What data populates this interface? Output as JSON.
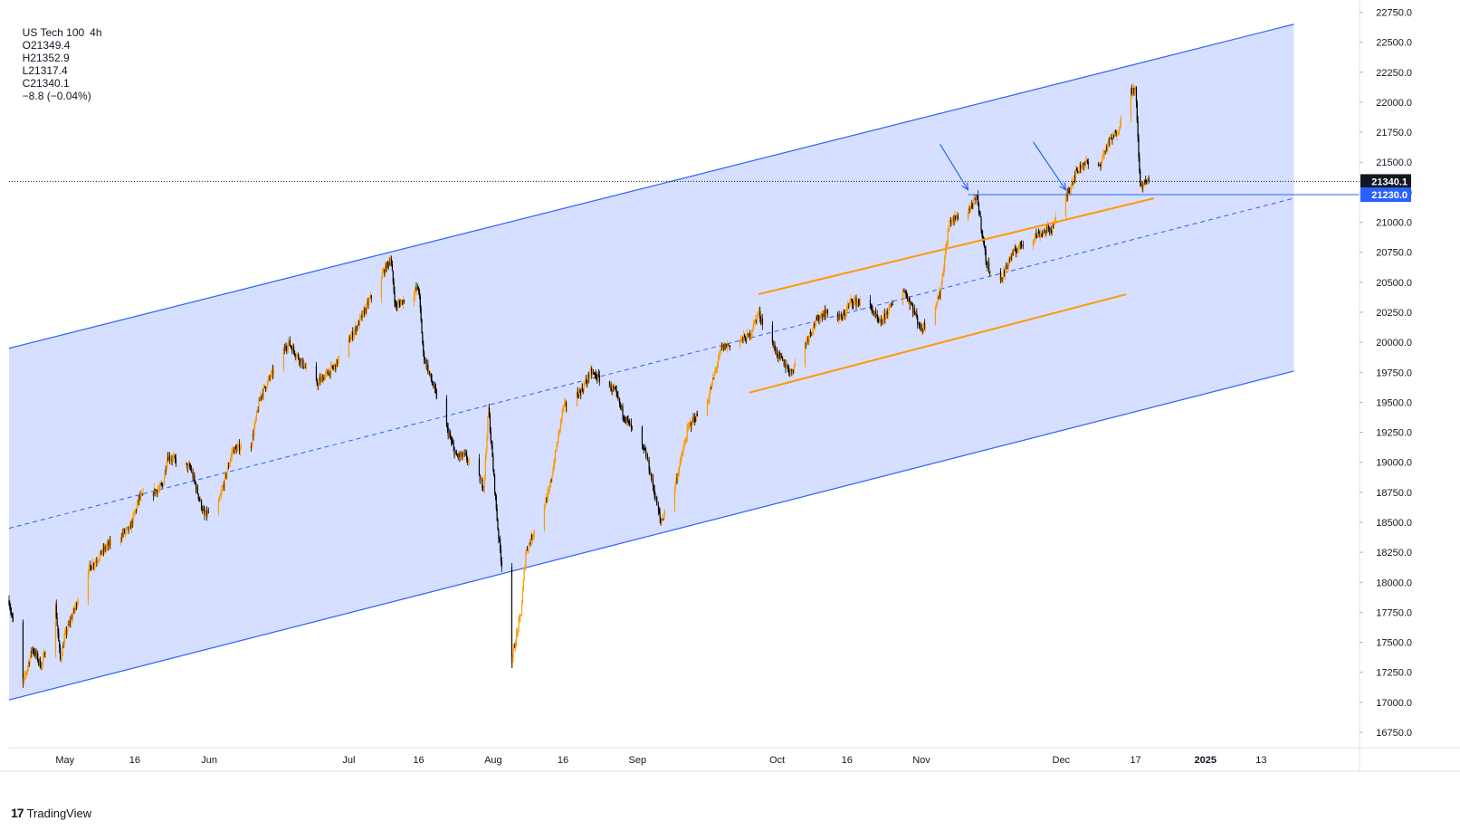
{
  "header": {
    "symbol": "US Tech 100",
    "interval": "4h",
    "open": "O21349.4",
    "high": "H21352.9",
    "low": "L21317.4",
    "close": "C21340.1",
    "change": "−8.8 (−0.04%)"
  },
  "brand": {
    "name": "TradingView",
    "logo_text": "17"
  },
  "colors": {
    "channel_fill": "#d1dcff",
    "channel_line": "#2962ff",
    "orange": "#ff9800",
    "price_tag_bg": "#131722",
    "level_tag_bg": "#2962ff",
    "axis_text": "#131722",
    "candle_up": "#ff9800",
    "candle_down": "#000000"
  },
  "chart_data": {
    "type": "candlestick",
    "title": "",
    "xlabel": "",
    "ylabel": "",
    "ylim": [
      16550,
      22750
    ],
    "y_ticks": [
      "22750.0",
      "22500.0",
      "22250.0",
      "22000.0",
      "21750.0",
      "21500.0",
      "21250.0",
      "21000.0",
      "20750.0",
      "20500.0",
      "20250.0",
      "20000.0",
      "19750.0",
      "19500.0",
      "19250.0",
      "19000.0",
      "18750.0",
      "18500.0",
      "18250.0",
      "18000.0",
      "17750.0",
      "17500.0",
      "17250.0",
      "17000.0",
      "16750.0"
    ],
    "x_ticks": [
      {
        "label": "May",
        "date": "2024-05-01"
      },
      {
        "label": "16",
        "date": "2024-05-16"
      },
      {
        "label": "Jun",
        "date": "2024-06-01"
      },
      {
        "label": "Jul",
        "date": "2024-07-01"
      },
      {
        "label": "16",
        "date": "2024-07-16"
      },
      {
        "label": "Aug",
        "date": "2024-08-01"
      },
      {
        "label": "16",
        "date": "2024-08-16"
      },
      {
        "label": "Sep",
        "date": "2024-09-01"
      },
      {
        "label": "Oct",
        "date": "2024-10-01"
      },
      {
        "label": "16",
        "date": "2024-10-16"
      },
      {
        "label": "Nov",
        "date": "2024-11-01"
      },
      {
        "label": "Dec",
        "date": "2024-12-01"
      },
      {
        "label": "17",
        "date": "2024-12-17"
      },
      {
        "label": "2025",
        "date": "2025-01-01"
      },
      {
        "label": "13",
        "date": "2025-01-13"
      }
    ],
    "price_path": [
      [
        "2024-04-19",
        17850
      ],
      [
        "2024-04-22",
        17150
      ],
      [
        "2024-04-24",
        17450
      ],
      [
        "2024-04-26",
        17300
      ],
      [
        "2024-04-29",
        17800
      ],
      [
        "2024-04-30",
        17350
      ],
      [
        "2024-05-01",
        17550
      ],
      [
        "2024-05-06",
        18100
      ],
      [
        "2024-05-10",
        18300
      ],
      [
        "2024-05-15",
        18450
      ],
      [
        "2024-05-17",
        18700
      ],
      [
        "2024-05-20",
        18750
      ],
      [
        "2024-05-22",
        18800
      ],
      [
        "2024-05-23",
        19050
      ],
      [
        "2024-05-28",
        18950
      ],
      [
        "2024-05-31",
        18550
      ],
      [
        "2024-06-03",
        18650
      ],
      [
        "2024-06-06",
        19100
      ],
      [
        "2024-06-10",
        19150
      ],
      [
        "2024-06-12",
        19550
      ],
      [
        "2024-06-18",
        20000
      ],
      [
        "2024-06-24",
        19650
      ],
      [
        "2024-06-28",
        19800
      ],
      [
        "2024-07-03",
        20150
      ],
      [
        "2024-07-08",
        20550
      ],
      [
        "2024-07-10",
        20700
      ],
      [
        "2024-07-11",
        20300
      ],
      [
        "2024-07-16",
        20450
      ],
      [
        "2024-07-17",
        19900
      ],
      [
        "2024-07-19",
        19650
      ],
      [
        "2024-07-24",
        19050
      ],
      [
        "2024-07-26",
        19050
      ],
      [
        "2024-07-30",
        18800
      ],
      [
        "2024-07-31",
        19450
      ],
      [
        "2024-08-02",
        18450
      ],
      [
        "2024-08-05",
        17350
      ],
      [
        "2024-08-07",
        17750
      ],
      [
        "2024-08-08",
        18250
      ],
      [
        "2024-08-13",
        18750
      ],
      [
        "2024-08-16",
        19450
      ],
      [
        "2024-08-20",
        19600
      ],
      [
        "2024-08-22",
        19750
      ],
      [
        "2024-08-27",
        19600
      ],
      [
        "2024-08-29",
        19400
      ],
      [
        "2024-09-03",
        19050
      ],
      [
        "2024-09-06",
        18500
      ],
      [
        "2024-09-09",
        18800
      ],
      [
        "2024-09-12",
        19300
      ],
      [
        "2024-09-16",
        19500
      ],
      [
        "2024-09-19",
        19950
      ],
      [
        "2024-09-25",
        20050
      ],
      [
        "2024-09-27",
        20250
      ],
      [
        "2024-10-01",
        19900
      ],
      [
        "2024-10-04",
        19750
      ],
      [
        "2024-10-09",
        20150
      ],
      [
        "2024-10-11",
        20250
      ],
      [
        "2024-10-15",
        20200
      ],
      [
        "2024-10-17",
        20350
      ],
      [
        "2024-10-21",
        20300
      ],
      [
        "2024-10-23",
        20150
      ],
      [
        "2024-10-28",
        20450
      ],
      [
        "2024-10-30",
        20300
      ],
      [
        "2024-11-01",
        20100
      ],
      [
        "2024-11-05",
        20400
      ],
      [
        "2024-11-07",
        21000
      ],
      [
        "2024-11-11",
        21100
      ],
      [
        "2024-11-13",
        21200
      ],
      [
        "2024-11-15",
        20650
      ],
      [
        "2024-11-18",
        20500
      ],
      [
        "2024-11-20",
        20700
      ],
      [
        "2024-11-22",
        20800
      ],
      [
        "2024-11-26",
        20900
      ],
      [
        "2024-11-29",
        20950
      ],
      [
        "2024-12-02",
        21200
      ],
      [
        "2024-12-04",
        21400
      ],
      [
        "2024-12-06",
        21500
      ],
      [
        "2024-12-09",
        21450
      ],
      [
        "2024-12-11",
        21650
      ],
      [
        "2024-12-13",
        21750
      ],
      [
        "2024-12-16",
        22100
      ],
      [
        "2024-12-17",
        22100
      ],
      [
        "2024-12-18",
        21300
      ],
      [
        "2024-12-19",
        21330
      ],
      [
        "2024-12-20",
        21340
      ]
    ],
    "annotations": {
      "channel": {
        "upper": [
          [
            "2024-04-19",
            19950
          ],
          [
            "2025-01-20",
            22650
          ]
        ],
        "mid": [
          [
            "2024-04-19",
            18450
          ],
          [
            "2025-01-20",
            21200
          ]
        ],
        "lower": [
          [
            "2024-04-19",
            17020
          ],
          [
            "2025-01-20",
            19760
          ]
        ]
      },
      "orange_upper": [
        [
          "2024-09-27",
          20400
        ],
        [
          "2024-12-21",
          21200
        ]
      ],
      "orange_lower": [
        [
          "2024-09-25",
          19580
        ],
        [
          "2024-12-15",
          20400
        ]
      ],
      "level_line": {
        "from": "2024-11-11",
        "price": 21230
      },
      "arrows": [
        {
          "from": [
            "2024-11-05",
            21650
          ],
          "to": [
            "2024-11-11",
            21270
          ]
        },
        {
          "from": [
            "2024-11-25",
            21670
          ],
          "to": [
            "2024-12-02",
            21270
          ]
        }
      ]
    },
    "last_price": "21340.1",
    "level_price": "21230.0"
  }
}
